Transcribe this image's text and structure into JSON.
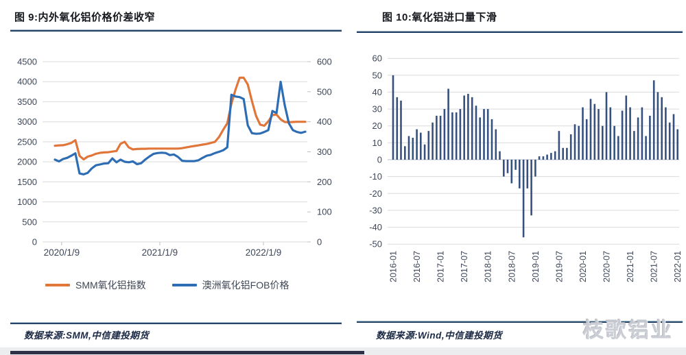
{
  "left_panel": {
    "title": "图 9:内外氧化铝价格价差收窄",
    "source": "数据来源:SMM,中信建投期货"
  },
  "right_panel": {
    "title": "图 10:氧化铝进口量下滑",
    "source": "数据来源:Wind,中信建投期货"
  },
  "watermark": "枝歌铝业",
  "colors": {
    "accent_rule": "#17375e",
    "grid": "#d9d9d9",
    "axis_text": "#3d4658",
    "footer_text": "#1b2945",
    "bar": "#36517e",
    "series_orange": "#e0763a",
    "series_blue": "#2e6db4",
    "watermark": "#c9ccd3",
    "bottom_bar": "#2b3046"
  },
  "chart_data": [
    {
      "type": "line",
      "title": "内外氧化铝价格价差收窄",
      "legend_position": "bottom",
      "grid": true,
      "axes": {
        "left": {
          "min": 0,
          "max": 4500,
          "step": 500
        },
        "right": {
          "min": 0,
          "max": 600,
          "step": 100
        }
      },
      "x_ticks": {
        "labels": [
          "2020/1/9",
          "2021/1/9",
          "2022/1/9"
        ],
        "fractions": [
          0.027,
          0.419,
          0.833
        ]
      },
      "series": [
        {
          "name": "SMM氧化铝指数",
          "axis": "left",
          "color": "#e0763a",
          "values": [
            2400,
            2410,
            2415,
            2440,
            2470,
            2540,
            2150,
            2060,
            2130,
            2160,
            2200,
            2225,
            2235,
            2240,
            2255,
            2270,
            2450,
            2500,
            2360,
            2310,
            2320,
            2325,
            2325,
            2330,
            2330,
            2330,
            2330,
            2330,
            2330,
            2330,
            2330,
            2340,
            2360,
            2380,
            2395,
            2410,
            2430,
            2445,
            2470,
            2500,
            2620,
            2800,
            2960,
            3450,
            3800,
            4100,
            4100,
            3930,
            3520,
            3150,
            2930,
            2900,
            3010,
            3165,
            3180,
            3060,
            2995,
            2990,
            2995,
            3000,
            3000,
            3000
          ]
        },
        {
          "name": "澳洲氧化铝FOB价格",
          "axis": "right",
          "color": "#2e6db4",
          "values": [
            274,
            268,
            276,
            280,
            287,
            295,
            228,
            225,
            230,
            245,
            255,
            258,
            261,
            262,
            278,
            265,
            274,
            267,
            265,
            268,
            259,
            262,
            274,
            284,
            293,
            296,
            297,
            296,
            289,
            291,
            283,
            270,
            269,
            269,
            269,
            272,
            280,
            287,
            290,
            296,
            300,
            305,
            315,
            490,
            484,
            482,
            476,
            388,
            362,
            360,
            361,
            366,
            372,
            436,
            429,
            533,
            455,
            395,
            372,
            366,
            363,
            367
          ]
        }
      ]
    },
    {
      "type": "bar",
      "title": "氧化铝进口量下滑",
      "grid": true,
      "axis": {
        "min": -50,
        "max": 60,
        "step": 10
      },
      "bar_color": "#36517e",
      "start_month": "2016-01",
      "tick_every": 6,
      "tick_labels": [
        "2016-01",
        "2016-07",
        "2017-01",
        "2017-07",
        "2018-01",
        "2018-07",
        "2019-01",
        "2019-07",
        "2020-01",
        "2020-07",
        "2021-01",
        "2021-07",
        "2022-01"
      ],
      "values": [
        50,
        37,
        35,
        8,
        14,
        13,
        18,
        16,
        9,
        17,
        22,
        26,
        26,
        30,
        42,
        28,
        28,
        30,
        38,
        39,
        37,
        32,
        25,
        30,
        30,
        24,
        18,
        5,
        -10,
        -8,
        -14,
        -6,
        -17,
        -46,
        -17,
        -33,
        -10,
        2,
        2,
        3,
        4,
        5,
        17,
        7,
        7,
        15,
        21,
        20,
        31,
        24,
        36,
        33,
        30,
        20,
        40,
        31,
        20,
        14,
        29,
        38,
        31,
        17,
        25,
        31,
        14,
        26,
        47,
        40,
        37,
        31,
        22,
        27,
        18
      ]
    }
  ]
}
